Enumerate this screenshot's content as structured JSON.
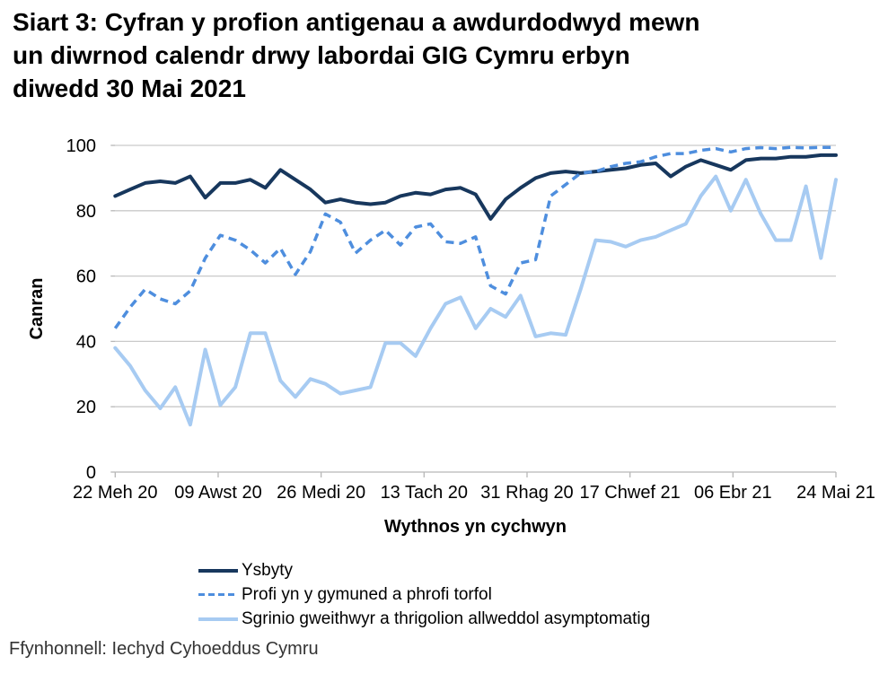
{
  "title": {
    "lines": [
      "Siart 3: Cyfran y profion antigenau a awdurdodwyd mewn",
      "un diwrnod calendr drwy labordai GIG Cymru erbyn",
      "diwedd 30 Mai 2021"
    ]
  },
  "source": {
    "text": "Ffynhonnell: Iechyd Cyhoeddus Cymru"
  },
  "colors": {
    "hospital_line": "#17375d",
    "community_line": "#4e8ede",
    "screening_line": "#a7cbf2",
    "gridline": "#c9c9c9",
    "axis": "#b7b7b7",
    "text": "#000000"
  },
  "chart_data": {
    "type": "line",
    "title": "Siart 3: Cyfran y profion antigenau a awdurdodwyd mewn un diwrnod calendr drwy labordai GIG Cymru erbyn diwedd 30 Mai 2021",
    "xlabel": "Wythnos yn cychwyn",
    "ylabel": "Canran",
    "ylim": [
      0,
      100
    ],
    "yticks": [
      0,
      20,
      40,
      60,
      80,
      100
    ],
    "xtick_labels": [
      "22 Meh 20",
      "09 Awst 20",
      "26 Medi 20",
      "13 Tach 20",
      "31 Rhag 20",
      "17 Chwef 21",
      "06 Ebr 21",
      "24 Mai 21"
    ],
    "x_count": 49,
    "grid": "horizontal",
    "legend_position": "bottom-left",
    "series": [
      {
        "name": "Ysbyty",
        "style": "solid",
        "color": "#17375d",
        "width": 4,
        "values": [
          84.5,
          86.5,
          88.5,
          89,
          88.5,
          90.5,
          84,
          88.5,
          88.5,
          89.5,
          87,
          92.5,
          89.5,
          86.5,
          82.5,
          83.5,
          82.5,
          82,
          82.5,
          84.5,
          85.5,
          85,
          86.5,
          87,
          85,
          77.5,
          83.5,
          87,
          90,
          91.5,
          92,
          91.5,
          92,
          92.5,
          93,
          94,
          94.5,
          90.5,
          93.5,
          95.5,
          94,
          92.5,
          95.5,
          96,
          96,
          96.5,
          96.5,
          97,
          97
        ]
      },
      {
        "name": "Profi yn y gymuned a phrofi torfol",
        "style": "dashed",
        "color": "#4e8ede",
        "width": 3.5,
        "values": [
          44,
          50.5,
          56,
          53,
          51.5,
          55.5,
          65.5,
          72.5,
          71,
          68,
          64,
          68.5,
          60.5,
          67.5,
          79,
          76.5,
          67,
          71,
          74,
          69.5,
          75,
          76,
          70.5,
          70,
          72,
          57,
          54.5,
          64,
          65,
          84.5,
          88,
          91.5,
          92,
          93.5,
          94.5,
          95,
          96.5,
          97.5,
          97.5,
          98.5,
          99,
          98,
          99,
          99.3,
          99,
          99.4,
          99.2,
          99.4,
          99.4
        ]
      },
      {
        "name": "Sgrinio gweithwyr a thrigolion allweddol asymptomatig",
        "style": "solid",
        "color": "#a7cbf2",
        "width": 4,
        "values": [
          38,
          32.5,
          25,
          19.5,
          26,
          14.5,
          37.5,
          20.5,
          26,
          42.5,
          42.5,
          28,
          23,
          28.5,
          27,
          24,
          25,
          26,
          39.5,
          39.5,
          35.5,
          44,
          51.5,
          53.5,
          44,
          50,
          47.5,
          54,
          41.5,
          42.5,
          42,
          56,
          71,
          70.5,
          69,
          71,
          72,
          74,
          76,
          84.5,
          90.5,
          80,
          89.5,
          79,
          71,
          71,
          87.5,
          65.5,
          89.5
        ]
      }
    ]
  }
}
